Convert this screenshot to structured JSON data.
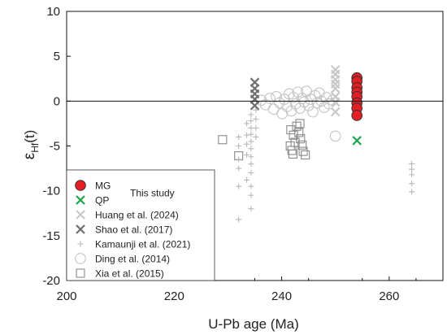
{
  "chart_data": {
    "type": "scatter",
    "xlabel": "U-Pb age (Ma)",
    "ylabel_main": "ε",
    "ylabel_sub": "Hf",
    "ylabel_tail": "(t)",
    "xlim": [
      200,
      270
    ],
    "ylim": [
      -20,
      10
    ],
    "x_ticks": [
      200,
      220,
      240,
      260
    ],
    "y_ticks": [
      10,
      5,
      0,
      -5,
      -10,
      -15,
      -20
    ],
    "x_tick_labels": [
      "200",
      "220",
      "240",
      "260"
    ],
    "y_tick_labels": [
      "10",
      "5",
      "0",
      "-5",
      "-10",
      "-15",
      "-20"
    ],
    "zero_line": 0,
    "grid": false,
    "legend_position": "bottom-left",
    "legend_note": "This study",
    "series": [
      {
        "name": "Xia et al. (2015)",
        "marker": "square",
        "color": "#8a8a8a",
        "points": [
          [
            229,
            -4.3
          ],
          [
            232,
            -6.1
          ],
          [
            241.7,
            -3.2
          ],
          [
            242.2,
            -3.8
          ],
          [
            242.5,
            -4.6
          ],
          [
            241.6,
            -5.0
          ],
          [
            241.9,
            -5.5
          ],
          [
            242.1,
            -5.9
          ],
          [
            242.8,
            -2.8
          ],
          [
            243.2,
            -3.5
          ],
          [
            243.5,
            -4.2
          ],
          [
            243.8,
            -4.9
          ],
          [
            244.0,
            -5.6
          ],
          [
            244.4,
            -6.0
          ],
          [
            243.4,
            -2.5
          ]
        ]
      },
      {
        "name": "Ding  et al. (2014)",
        "marker": "circle",
        "color": "#c4c4c4",
        "points": [
          [
            236.2,
            0.1
          ],
          [
            237,
            -0.4
          ],
          [
            237.8,
            0.3
          ],
          [
            238.5,
            -0.9
          ],
          [
            239,
            0.5
          ],
          [
            239.6,
            -0.2
          ],
          [
            240.1,
            -1.4
          ],
          [
            240.5,
            0.2
          ],
          [
            241,
            -0.6
          ],
          [
            241.4,
            0.8
          ],
          [
            241.8,
            -1.1
          ],
          [
            242.2,
            0.4
          ],
          [
            242.6,
            -0.3
          ],
          [
            243,
            1.0
          ],
          [
            243.4,
            -0.8
          ],
          [
            243.8,
            0.3
          ],
          [
            244.2,
            -0.1
          ],
          [
            244.6,
            1.1
          ],
          [
            245,
            -0.5
          ],
          [
            245.4,
            0.2
          ],
          [
            245.8,
            -1.2
          ],
          [
            246.2,
            0.6
          ],
          [
            246.6,
            -0.2
          ],
          [
            247,
            0.9
          ],
          [
            247.4,
            0.0
          ],
          [
            247.9,
            -0.7
          ],
          [
            248.3,
            0.4
          ],
          [
            248.8,
            -0.3
          ],
          [
            249.5,
            0.1
          ],
          [
            250,
            -3.9
          ]
        ]
      },
      {
        "name": "Kamaunji et al. (2021)",
        "marker": "plus",
        "color": "#b8b8b8",
        "points": [
          [
            232,
            -4.0
          ],
          [
            232,
            -5.0
          ],
          [
            232,
            -6.5
          ],
          [
            232,
            -7.5
          ],
          [
            232,
            -9.5
          ],
          [
            232,
            -13.2
          ],
          [
            233.5,
            -2.5
          ],
          [
            233.5,
            -3.8
          ],
          [
            233.5,
            -4.8
          ],
          [
            233.5,
            -6.0
          ],
          [
            233.5,
            -8.8
          ],
          [
            234.3,
            -1.5
          ],
          [
            234.3,
            -2.2
          ],
          [
            234.3,
            -3.0
          ],
          [
            234.3,
            -3.7
          ],
          [
            234.3,
            -4.5
          ],
          [
            234.3,
            -5.3
          ],
          [
            234.3,
            -6.2
          ],
          [
            234.3,
            -7.0
          ],
          [
            234.3,
            -8.0
          ],
          [
            234.3,
            -9.5
          ],
          [
            234.3,
            -10.5
          ],
          [
            234.3,
            -12.0
          ],
          [
            235.2,
            -1.0
          ],
          [
            235.2,
            -2.0
          ],
          [
            235.2,
            -3.0
          ],
          [
            235.2,
            -4.0
          ],
          [
            264.2,
            -7.0
          ],
          [
            264.2,
            -7.6
          ],
          [
            264.2,
            -8.2
          ],
          [
            264.2,
            -9.2
          ],
          [
            264.2,
            -10.1
          ]
        ]
      },
      {
        "name": "Shao et al. (2017)",
        "marker": "x",
        "color": "#6e6e6e",
        "points": [
          [
            235,
            2.1
          ],
          [
            235,
            1.4
          ],
          [
            235,
            0.8
          ],
          [
            235,
            0.2
          ],
          [
            235,
            -0.5
          ]
        ]
      },
      {
        "name": "Huang et al. (2024)",
        "marker": "x",
        "color": "#c8c8c8",
        "points": [
          [
            250,
            3.5
          ],
          [
            250,
            3.0
          ],
          [
            250,
            2.4
          ],
          [
            250,
            1.9
          ],
          [
            250,
            1.4
          ],
          [
            250,
            0.5
          ],
          [
            250,
            -0.1
          ],
          [
            250,
            -1.2
          ]
        ]
      },
      {
        "name": "QP",
        "marker": "x",
        "color": "#1aa34a",
        "points": [
          [
            254,
            0.9
          ],
          [
            254,
            0.4
          ],
          [
            254,
            -0.2
          ],
          [
            254,
            -0.6
          ],
          [
            254,
            -4.4
          ]
        ]
      },
      {
        "name": "MG",
        "marker": "filled-circle",
        "color": "#e31e24",
        "points": [
          [
            254,
            2.6
          ],
          [
            254,
            2.2
          ],
          [
            254,
            1.5
          ],
          [
            254,
            1.0
          ],
          [
            254,
            0.5
          ],
          [
            254,
            -0.2
          ],
          [
            254,
            -0.8
          ],
          [
            254,
            -1.6
          ]
        ]
      }
    ],
    "legend_entries": [
      {
        "label": "MG",
        "marker": "filled-circle",
        "color": "#e31e24"
      },
      {
        "label": "QP",
        "marker": "x",
        "color": "#1aa34a"
      },
      {
        "label": "Huang et al. (2024)",
        "marker": "x",
        "color": "#c8c8c8"
      },
      {
        "label": "Shao et al. (2017)",
        "marker": "x",
        "color": "#6e6e6e"
      },
      {
        "label": "Kamaunji et al. (2021)",
        "marker": "plus",
        "color": "#b8b8b8"
      },
      {
        "label": "Ding  et al. (2014)",
        "marker": "circle",
        "color": "#c4c4c4"
      },
      {
        "label": "Xia et al. (2015)",
        "marker": "square",
        "color": "#8a8a8a"
      }
    ]
  }
}
